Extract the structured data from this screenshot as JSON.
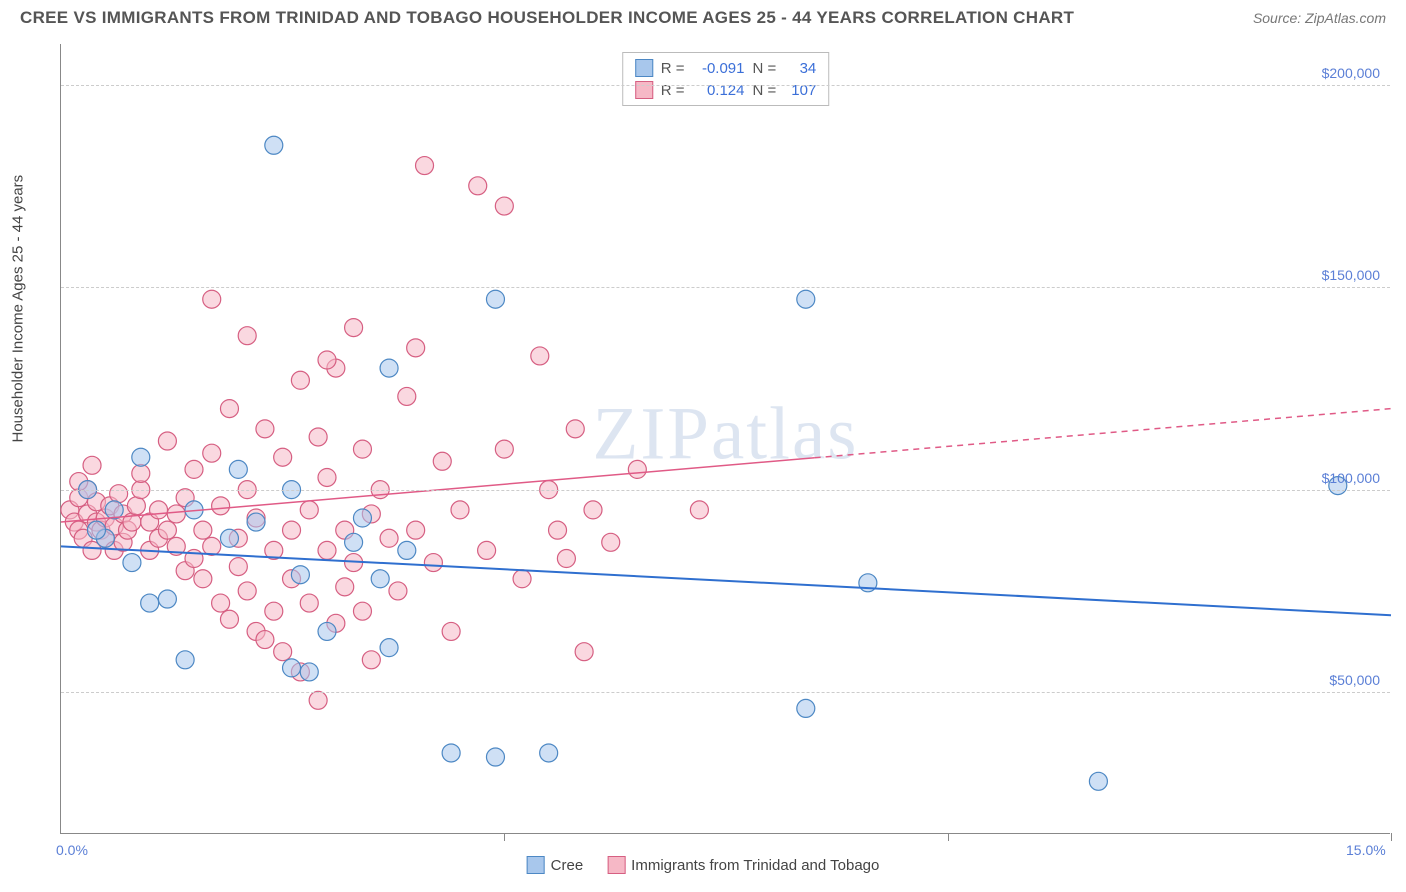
{
  "header": {
    "title": "CREE VS IMMIGRANTS FROM TRINIDAD AND TOBAGO HOUSEHOLDER INCOME AGES 25 - 44 YEARS CORRELATION CHART",
    "source_prefix": "Source: ",
    "source_name": "ZipAtlas.com"
  },
  "chart": {
    "type": "scatter",
    "y_axis_title": "Householder Income Ages 25 - 44 years",
    "xlim": [
      0,
      15
    ],
    "ylim": [
      15000,
      210000
    ],
    "x_ticks": [
      0,
      5,
      10,
      15
    ],
    "x_tick_labels": [
      "0.0%",
      "",
      "",
      "15.0%"
    ],
    "y_gridlines": [
      50000,
      100000,
      150000,
      200000
    ],
    "y_tick_labels": [
      "$50,000",
      "$100,000",
      "$150,000",
      "$200,000"
    ],
    "background_color": "#ffffff",
    "grid_color": "#cccccc",
    "axis_color": "#888888",
    "label_color": "#5b7fd6",
    "marker_radius": 9,
    "marker_stroke_width": 1.2,
    "watermark": "ZIPatlas",
    "series": {
      "cree": {
        "label": "Cree",
        "fill": "#a8c7ec",
        "fill_opacity": 0.55,
        "stroke": "#4d88c4",
        "R": "-0.091",
        "N": "34",
        "trend": {
          "y_at_xmin": 86000,
          "y_at_xmax": 69000,
          "color": "#2f6fcf",
          "width": 2,
          "solid_until_x": 15
        },
        "points": [
          [
            2.4,
            185000
          ],
          [
            4.9,
            147000
          ],
          [
            8.4,
            147000
          ],
          [
            2.0,
            105000
          ],
          [
            3.7,
            130000
          ],
          [
            3.4,
            93000
          ],
          [
            3.6,
            78000
          ],
          [
            2.7,
            79000
          ],
          [
            3.0,
            65000
          ],
          [
            1.4,
            58000
          ],
          [
            1.2,
            73000
          ],
          [
            2.6,
            56000
          ],
          [
            2.8,
            55000
          ],
          [
            3.7,
            61000
          ],
          [
            4.4,
            35000
          ],
          [
            4.9,
            34000
          ],
          [
            5.5,
            35000
          ],
          [
            8.4,
            46000
          ],
          [
            9.1,
            77000
          ],
          [
            11.7,
            28000
          ],
          [
            14.4,
            101000
          ],
          [
            0.6,
            95000
          ],
          [
            0.5,
            88000
          ],
          [
            0.8,
            82000
          ],
          [
            1.0,
            72000
          ],
          [
            1.5,
            95000
          ],
          [
            1.9,
            88000
          ],
          [
            2.2,
            92000
          ],
          [
            2.6,
            100000
          ],
          [
            0.4,
            90000
          ],
          [
            0.3,
            100000
          ],
          [
            0.9,
            108000
          ],
          [
            3.3,
            87000
          ],
          [
            3.9,
            85000
          ]
        ]
      },
      "trinidad": {
        "label": "Immigrants from Trinidad and Tobago",
        "fill": "#f6b8c6",
        "fill_opacity": 0.55,
        "stroke": "#d65f82",
        "R": "0.124",
        "N": "107",
        "trend": {
          "y_at_xmin": 92000,
          "y_at_xmax": 120000,
          "color": "#e05a86",
          "width": 1.5,
          "solid_until_x": 8.5
        },
        "points": [
          [
            0.1,
            95000
          ],
          [
            0.15,
            92000
          ],
          [
            0.2,
            90000
          ],
          [
            0.2,
            98000
          ],
          [
            0.25,
            88000
          ],
          [
            0.3,
            94000
          ],
          [
            0.3,
            100000
          ],
          [
            0.35,
            85000
          ],
          [
            0.4,
            92000
          ],
          [
            0.4,
            97000
          ],
          [
            0.45,
            90000
          ],
          [
            0.5,
            93000
          ],
          [
            0.5,
            88000
          ],
          [
            0.55,
            96000
          ],
          [
            0.6,
            91000
          ],
          [
            0.6,
            85000
          ],
          [
            0.65,
            99000
          ],
          [
            0.7,
            87000
          ],
          [
            0.7,
            94000
          ],
          [
            0.75,
            90000
          ],
          [
            0.8,
            92000
          ],
          [
            0.85,
            96000
          ],
          [
            0.9,
            100000
          ],
          [
            0.9,
            104000
          ],
          [
            1.0,
            85000
          ],
          [
            1.0,
            92000
          ],
          [
            1.1,
            88000
          ],
          [
            1.1,
            95000
          ],
          [
            1.2,
            90000
          ],
          [
            1.2,
            112000
          ],
          [
            1.3,
            86000
          ],
          [
            1.3,
            94000
          ],
          [
            1.4,
            80000
          ],
          [
            1.4,
            98000
          ],
          [
            1.5,
            105000
          ],
          [
            1.5,
            83000
          ],
          [
            1.6,
            90000
          ],
          [
            1.6,
            78000
          ],
          [
            1.7,
            109000
          ],
          [
            1.7,
            86000
          ],
          [
            1.8,
            72000
          ],
          [
            1.8,
            96000
          ],
          [
            1.9,
            120000
          ],
          [
            1.9,
            68000
          ],
          [
            2.0,
            88000
          ],
          [
            2.0,
            81000
          ],
          [
            2.1,
            100000
          ],
          [
            2.1,
            75000
          ],
          [
            2.2,
            65000
          ],
          [
            2.2,
            93000
          ],
          [
            2.3,
            115000
          ],
          [
            2.3,
            63000
          ],
          [
            2.4,
            85000
          ],
          [
            2.4,
            70000
          ],
          [
            2.5,
            108000
          ],
          [
            2.5,
            60000
          ],
          [
            2.6,
            78000
          ],
          [
            2.6,
            90000
          ],
          [
            2.7,
            127000
          ],
          [
            2.7,
            55000
          ],
          [
            2.8,
            95000
          ],
          [
            2.8,
            72000
          ],
          [
            2.9,
            113000
          ],
          [
            2.9,
            48000
          ],
          [
            3.0,
            85000
          ],
          [
            3.0,
            103000
          ],
          [
            3.1,
            67000
          ],
          [
            3.1,
            130000
          ],
          [
            3.2,
            90000
          ],
          [
            3.2,
            76000
          ],
          [
            3.3,
            140000
          ],
          [
            3.3,
            82000
          ],
          [
            3.4,
            70000
          ],
          [
            3.4,
            110000
          ],
          [
            3.5,
            94000
          ],
          [
            3.5,
            58000
          ],
          [
            3.6,
            100000
          ],
          [
            3.7,
            88000
          ],
          [
            3.8,
            75000
          ],
          [
            3.9,
            123000
          ],
          [
            4.0,
            90000
          ],
          [
            4.0,
            135000
          ],
          [
            4.1,
            180000
          ],
          [
            4.2,
            82000
          ],
          [
            4.3,
            107000
          ],
          [
            4.4,
            65000
          ],
          [
            4.5,
            95000
          ],
          [
            4.7,
            175000
          ],
          [
            4.8,
            85000
          ],
          [
            5.0,
            110000
          ],
          [
            5.0,
            170000
          ],
          [
            5.2,
            78000
          ],
          [
            5.4,
            133000
          ],
          [
            5.5,
            100000
          ],
          [
            5.6,
            90000
          ],
          [
            5.8,
            115000
          ],
          [
            5.7,
            83000
          ],
          [
            5.9,
            60000
          ],
          [
            6.0,
            95000
          ],
          [
            6.2,
            87000
          ],
          [
            6.5,
            105000
          ],
          [
            1.7,
            147000
          ],
          [
            3.0,
            132000
          ],
          [
            2.1,
            138000
          ],
          [
            7.2,
            95000
          ],
          [
            0.2,
            102000
          ],
          [
            0.35,
            106000
          ]
        ]
      }
    }
  },
  "legend": {
    "r_label": "R =",
    "n_label": "N ="
  }
}
